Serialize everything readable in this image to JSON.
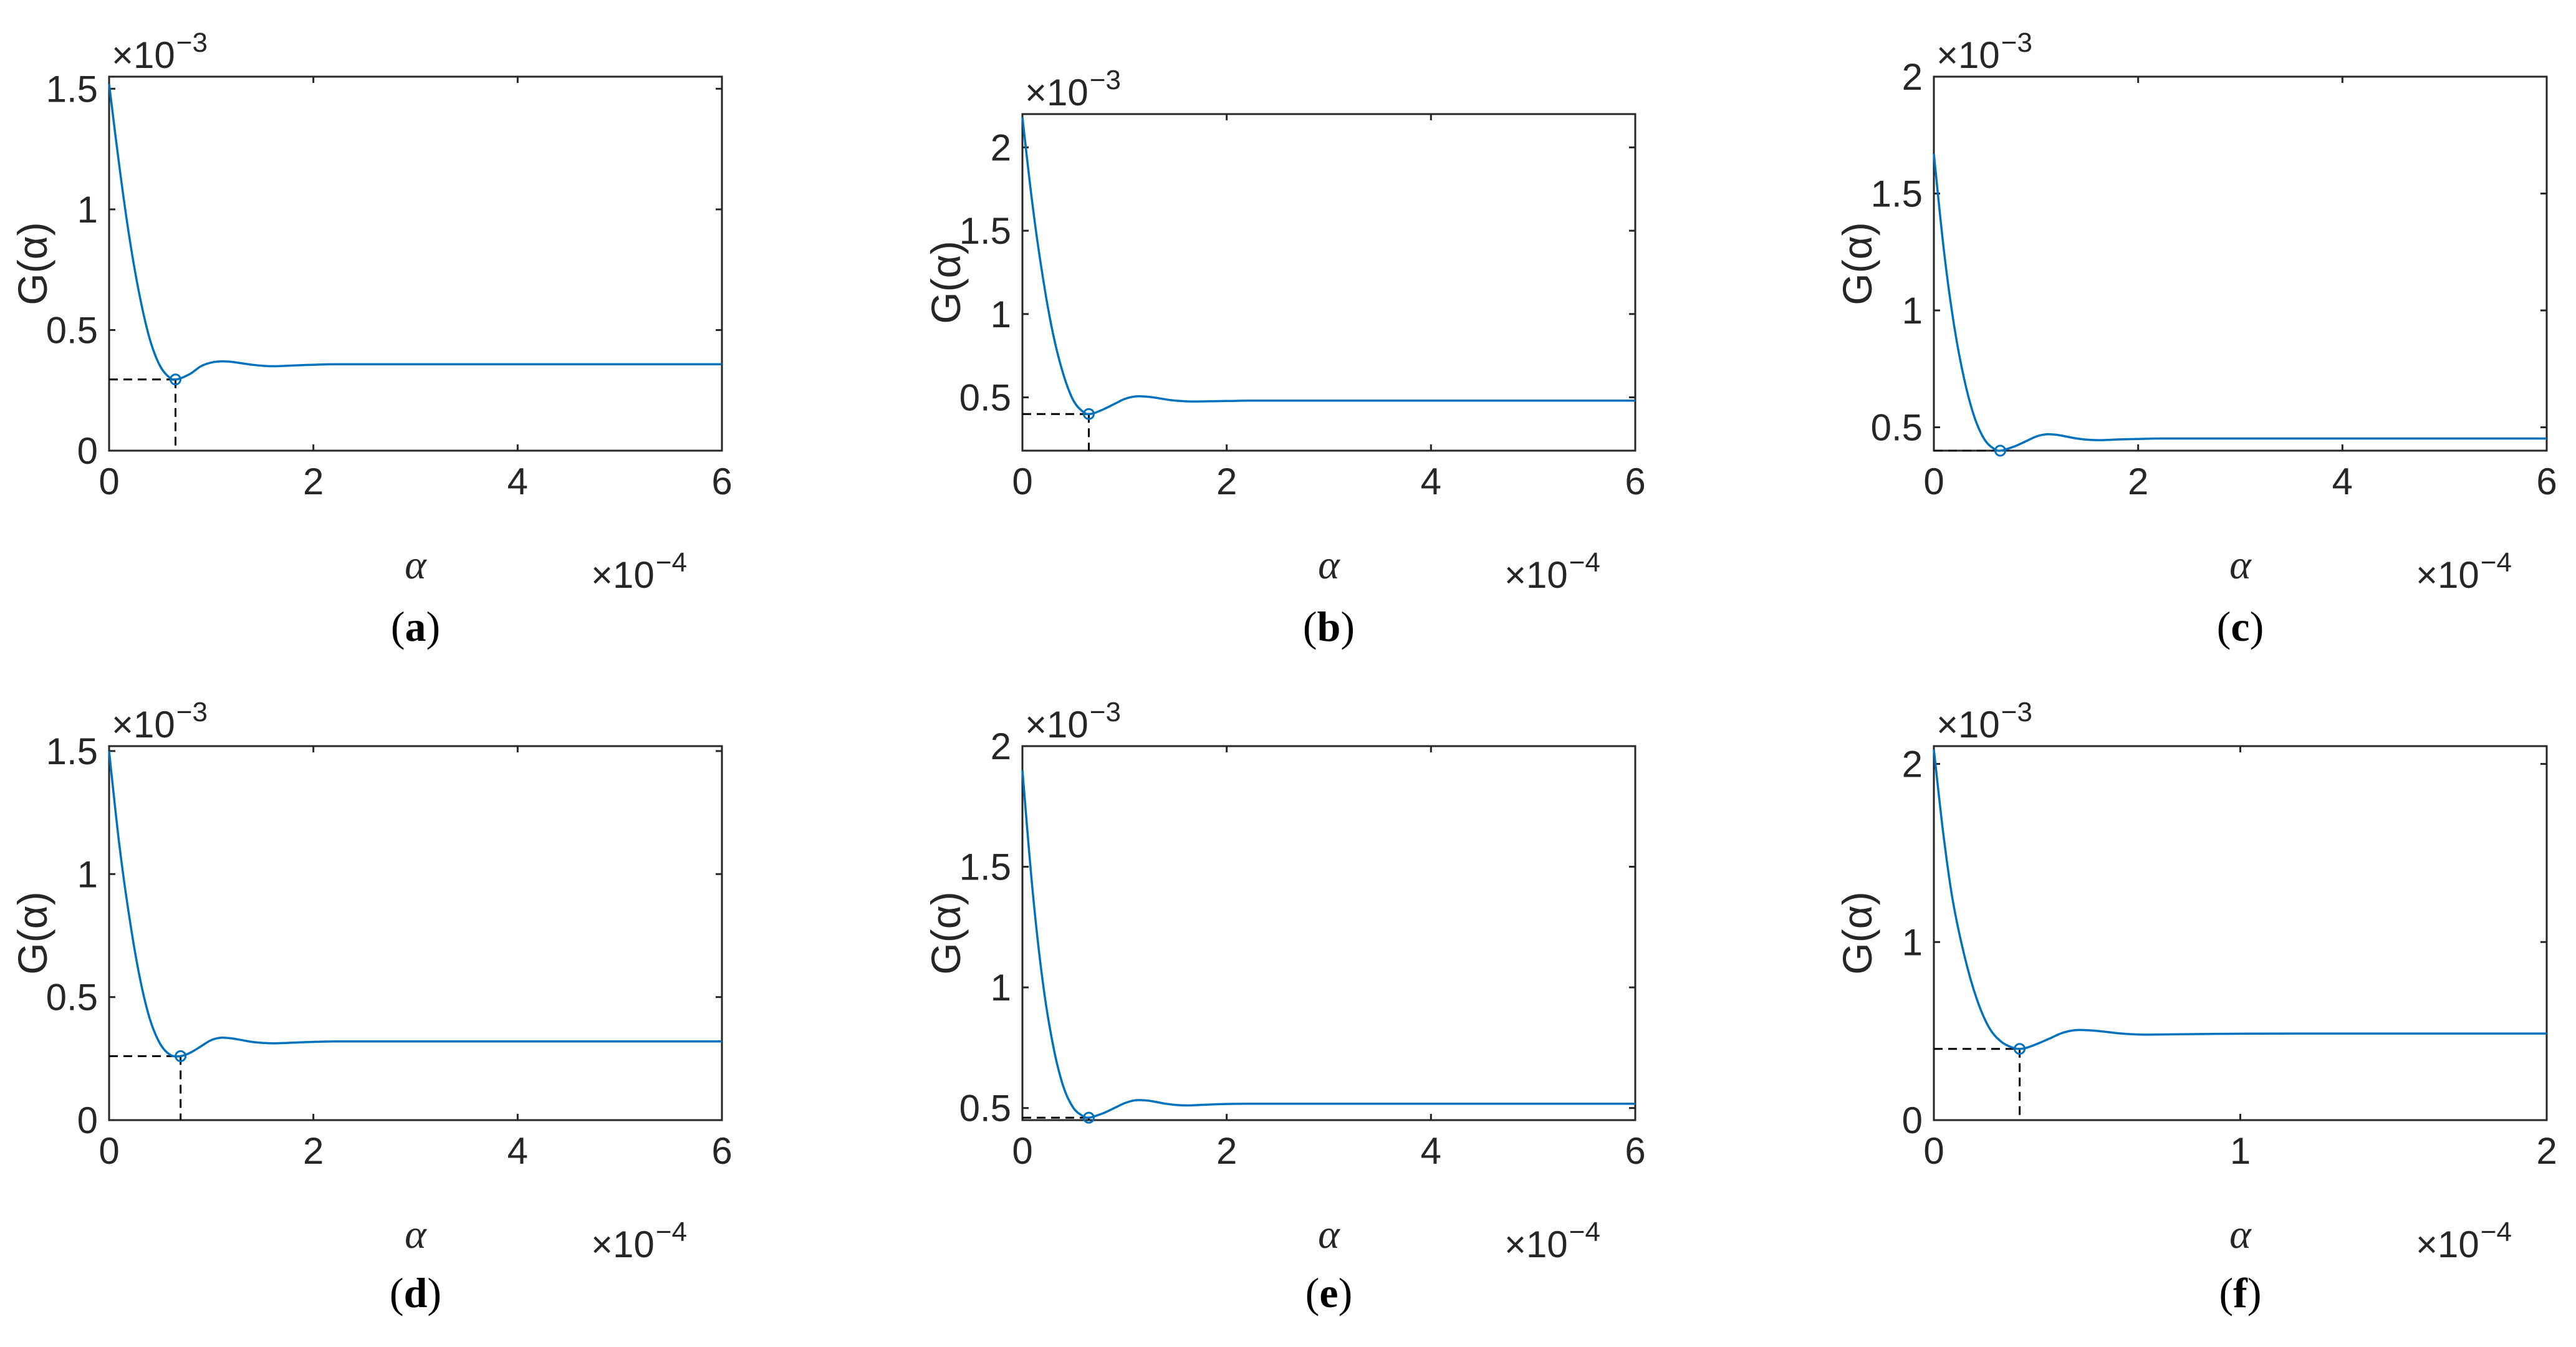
{
  "colors": {
    "line": "#0072BD",
    "marker": "#0072BD",
    "guide": "#000000",
    "axis": "#262626",
    "background": "#ffffff"
  },
  "chart_data": [
    {
      "caption": "a",
      "type": "line",
      "ylabel": "G(α)",
      "xlabel": "α",
      "x_multiplier": "×10",
      "x_exponent": "−4",
      "y_multiplier": "×10",
      "y_exponent": "−3",
      "xlim": [
        0,
        6
      ],
      "ylim": [
        0,
        1.55
      ],
      "xticks": [
        "0",
        "2",
        "4",
        "6"
      ],
      "yticks": [
        "0",
        "0.5",
        "1",
        "1.5"
      ],
      "ytick_values": [
        0,
        0.5,
        1,
        1.5
      ],
      "grid": false,
      "x": [
        0,
        0.1,
        0.2,
        0.3,
        0.4,
        0.5,
        0.6,
        0.65,
        0.7,
        0.8,
        0.9,
        1.0,
        1.1,
        1.2,
        1.3,
        1.4,
        1.5,
        1.6,
        1.7,
        1.8,
        2.0,
        2.2,
        2.5,
        3,
        4,
        5,
        6
      ],
      "y": [
        1.52,
        1.18,
        0.88,
        0.64,
        0.46,
        0.35,
        0.3,
        0.295,
        0.3,
        0.32,
        0.35,
        0.365,
        0.37,
        0.368,
        0.362,
        0.356,
        0.352,
        0.35,
        0.351,
        0.353,
        0.356,
        0.358,
        0.358,
        0.358,
        0.358,
        0.358,
        0.358
      ],
      "minimum": {
        "x": 0.65,
        "y": 0.295
      }
    },
    {
      "caption": "b",
      "type": "line",
      "ylabel": "G(α)",
      "xlabel": "α",
      "x_multiplier": "×10",
      "x_exponent": "−4",
      "y_multiplier": "×10",
      "y_exponent": "−3",
      "xlim": [
        0,
        6
      ],
      "ylim": [
        0.18,
        2.2
      ],
      "xticks": [
        "0",
        "2",
        "4",
        "6"
      ],
      "yticks": [
        "0.5",
        "1",
        "1.5",
        "2"
      ],
      "ytick_values": [
        0.5,
        1,
        1.5,
        2
      ],
      "grid": false,
      "x": [
        0,
        0.1,
        0.2,
        0.3,
        0.4,
        0.5,
        0.6,
        0.65,
        0.7,
        0.8,
        0.9,
        1.0,
        1.1,
        1.2,
        1.3,
        1.4,
        1.5,
        1.6,
        1.7,
        1.8,
        2.0,
        2.2,
        2.5,
        3,
        4,
        5,
        6
      ],
      "y": [
        2.18,
        1.65,
        1.22,
        0.88,
        0.64,
        0.48,
        0.41,
        0.4,
        0.405,
        0.43,
        0.46,
        0.49,
        0.505,
        0.505,
        0.498,
        0.488,
        0.48,
        0.476,
        0.475,
        0.476,
        0.478,
        0.48,
        0.48,
        0.48,
        0.48,
        0.48,
        0.48
      ],
      "minimum": {
        "x": 0.65,
        "y": 0.4
      }
    },
    {
      "caption": "c",
      "type": "line",
      "ylabel": "G(α)",
      "xlabel": "α",
      "x_multiplier": "×10",
      "x_exponent": "−4",
      "y_multiplier": "×10",
      "y_exponent": "−3",
      "xlim": [
        0,
        6
      ],
      "ylim": [
        0.4,
        2.0
      ],
      "xticks": [
        "0",
        "2",
        "4",
        "6"
      ],
      "yticks": [
        "0.5",
        "1",
        "1.5",
        "2"
      ],
      "ytick_values": [
        0.5,
        1,
        1.5,
        2
      ],
      "grid": false,
      "x": [
        0,
        0.1,
        0.2,
        0.3,
        0.4,
        0.5,
        0.6,
        0.65,
        0.7,
        0.8,
        0.9,
        1.0,
        1.1,
        1.2,
        1.3,
        1.4,
        1.5,
        1.6,
        1.7,
        1.8,
        2.0,
        2.2,
        2.5,
        3,
        4,
        5,
        6
      ],
      "y": [
        1.67,
        1.25,
        0.93,
        0.7,
        0.54,
        0.445,
        0.405,
        0.4,
        0.405,
        0.42,
        0.44,
        0.46,
        0.47,
        0.468,
        0.46,
        0.452,
        0.447,
        0.445,
        0.446,
        0.448,
        0.45,
        0.452,
        0.452,
        0.452,
        0.452,
        0.452,
        0.452
      ],
      "minimum": {
        "x": 0.65,
        "y": 0.4
      }
    },
    {
      "caption": "d",
      "type": "line",
      "ylabel": "G(α)",
      "xlabel": "α",
      "x_multiplier": "×10",
      "x_exponent": "−4",
      "y_multiplier": "×10",
      "y_exponent": "−3",
      "xlim": [
        0,
        6
      ],
      "ylim": [
        0,
        1.52
      ],
      "xticks": [
        "0",
        "2",
        "4",
        "6"
      ],
      "yticks": [
        "0",
        "0.5",
        "1",
        "1.5"
      ],
      "ytick_values": [
        0,
        0.5,
        1,
        1.5
      ],
      "grid": false,
      "x": [
        0,
        0.1,
        0.2,
        0.3,
        0.4,
        0.5,
        0.6,
        0.7,
        0.8,
        0.9,
        1.0,
        1.1,
        1.2,
        1.3,
        1.4,
        1.5,
        1.6,
        1.7,
        1.8,
        2.0,
        2.2,
        2.5,
        3,
        4,
        5,
        6
      ],
      "y": [
        1.5,
        1.12,
        0.82,
        0.58,
        0.41,
        0.31,
        0.265,
        0.26,
        0.275,
        0.3,
        0.325,
        0.335,
        0.332,
        0.325,
        0.318,
        0.314,
        0.312,
        0.313,
        0.315,
        0.318,
        0.32,
        0.32,
        0.32,
        0.32,
        0.32,
        0.32
      ],
      "minimum": {
        "x": 0.7,
        "y": 0.26
      }
    },
    {
      "caption": "e",
      "type": "line",
      "ylabel": "G(α)",
      "xlabel": "α",
      "x_multiplier": "×10",
      "x_exponent": "−4",
      "y_multiplier": "×10",
      "y_exponent": "−3",
      "xlim": [
        0,
        6
      ],
      "ylim": [
        0.45,
        2.0
      ],
      "xticks": [
        "0",
        "2",
        "4",
        "6"
      ],
      "yticks": [
        "0.5",
        "1",
        "1.5",
        "2"
      ],
      "ytick_values": [
        0.5,
        1,
        1.5,
        2
      ],
      "grid": false,
      "x": [
        0,
        0.1,
        0.2,
        0.3,
        0.4,
        0.5,
        0.6,
        0.65,
        0.7,
        0.8,
        0.9,
        1.0,
        1.1,
        1.2,
        1.3,
        1.4,
        1.5,
        1.6,
        1.7,
        1.8,
        2.0,
        2.2,
        2.5,
        3,
        4,
        5,
        6
      ],
      "y": [
        1.9,
        1.4,
        1.02,
        0.76,
        0.59,
        0.5,
        0.465,
        0.46,
        0.465,
        0.48,
        0.5,
        0.52,
        0.532,
        0.532,
        0.526,
        0.518,
        0.513,
        0.511,
        0.512,
        0.514,
        0.517,
        0.518,
        0.518,
        0.518,
        0.518,
        0.518,
        0.518
      ],
      "minimum": {
        "x": 0.65,
        "y": 0.46
      }
    },
    {
      "caption": "f",
      "type": "line",
      "ylabel": "G(α)",
      "xlabel": "α",
      "x_multiplier": "×10",
      "x_exponent": "−4",
      "y_multiplier": "×10",
      "y_exponent": "−3",
      "xlim": [
        0,
        2
      ],
      "ylim": [
        0,
        2.1
      ],
      "xticks": [
        "0",
        "1",
        "2"
      ],
      "yticks": [
        "0",
        "1",
        "2"
      ],
      "ytick_values": [
        0,
        1,
        2
      ],
      "grid": false,
      "x": [
        0,
        0.03,
        0.06,
        0.1,
        0.14,
        0.18,
        0.22,
        0.26,
        0.28,
        0.3,
        0.34,
        0.38,
        0.42,
        0.46,
        0.5,
        0.55,
        0.6,
        0.65,
        0.7,
        0.8,
        1.0,
        1.2,
        1.5,
        2.0
      ],
      "y": [
        2.08,
        1.62,
        1.25,
        0.92,
        0.68,
        0.52,
        0.44,
        0.405,
        0.4,
        0.405,
        0.43,
        0.46,
        0.49,
        0.505,
        0.505,
        0.498,
        0.488,
        0.482,
        0.48,
        0.482,
        0.485,
        0.486,
        0.486,
        0.486
      ],
      "minimum": {
        "x": 0.28,
        "y": 0.4
      }
    }
  ]
}
